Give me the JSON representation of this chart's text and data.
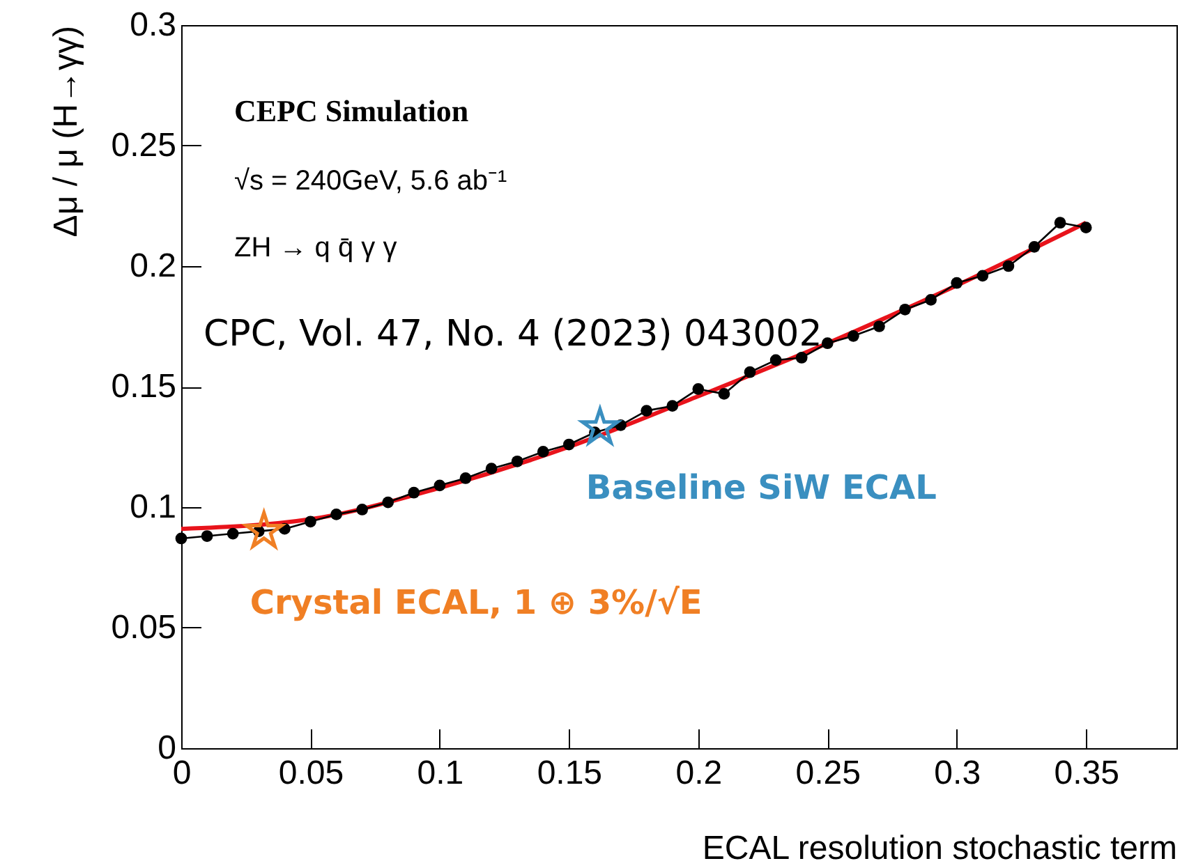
{
  "chart_data": {
    "type": "line",
    "xlabel": "ECAL resolution stochastic term",
    "ylabel": "Δμ / μ (H→γγ)",
    "xlim": [
      0,
      0.385
    ],
    "xticks": [
      0,
      0.05,
      0.1,
      0.15,
      0.2,
      0.25,
      0.3,
      0.35
    ],
    "ylim": [
      0,
      0.3
    ],
    "yticks": [
      0,
      0.05,
      0.1,
      0.15,
      0.2,
      0.25,
      0.3
    ],
    "annotations": [
      "CEPC Simulation",
      "√s = 240GeV, 5.6 ab⁻¹",
      "ZH → q q̄ γ γ",
      "CPC, Vol. 47, No. 4 (2023) 043002",
      {
        "text": "Crystal ECAL, 1 ⊕ 3%/√E",
        "x": 0.032,
        "y": 0.09
      },
      {
        "text": "Baseline SiW ECAL",
        "x": 0.162,
        "y": 0.133
      }
    ],
    "series": [
      {
        "marker": "circle",
        "color": "#000000",
        "x": [
          0,
          0.01,
          0.02,
          0.03,
          0.04,
          0.05,
          0.06,
          0.07,
          0.08,
          0.09,
          0.1,
          0.11,
          0.12,
          0.13,
          0.14,
          0.15,
          0.16,
          0.17,
          0.18,
          0.19,
          0.2,
          0.21,
          0.22,
          0.23,
          0.24,
          0.25,
          0.26,
          0.27,
          0.28,
          0.29,
          0.3,
          0.31,
          0.32,
          0.33,
          0.34,
          0.35
        ],
        "values": [
          0.087,
          0.088,
          0.089,
          0.09,
          0.091,
          0.094,
          0.097,
          0.099,
          0.102,
          0.106,
          0.109,
          0.112,
          0.116,
          0.119,
          0.123,
          0.126,
          0.131,
          0.134,
          0.14,
          0.142,
          0.149,
          0.147,
          0.156,
          0.161,
          0.162,
          0.168,
          0.171,
          0.175,
          0.182,
          0.186,
          0.193,
          0.196,
          0.2,
          0.208,
          0.218,
          0.216
        ]
      },
      {
        "marker": "none",
        "color": "#e8131b",
        "x": [
          0,
          0.05,
          0.1,
          0.15,
          0.2,
          0.25,
          0.3,
          0.35
        ],
        "values": [
          0.091,
          0.095,
          0.108,
          0.125,
          0.146,
          0.168,
          0.192,
          0.218
        ]
      },
      {
        "type": "scatter",
        "marker": "star",
        "color": "#f07f24",
        "x": [
          0.032
        ],
        "values": [
          0.09
        ]
      },
      {
        "type": "scatter",
        "marker": "star",
        "color": "#3a8fc0",
        "x": [
          0.162
        ],
        "values": [
          0.133
        ]
      }
    ]
  }
}
